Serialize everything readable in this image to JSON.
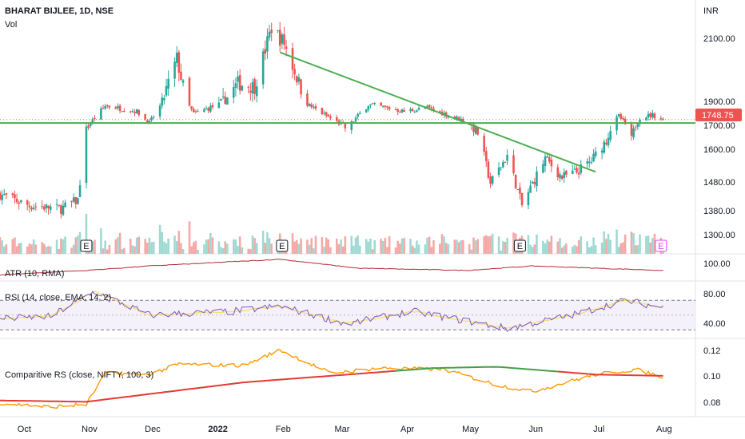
{
  "header": {
    "symbol": "BHARAT BIJLEE, 1D, NSE",
    "vol_label": "Vol",
    "currency": "INR"
  },
  "colors": {
    "up": "#26a69a",
    "down": "#ef5350",
    "trend": "#4caf50",
    "atr": "#b22833",
    "rsi": "#7e57c2",
    "rsi_ma": "#f5e06b",
    "crs": "#ff9800",
    "crs_ma_low": "#e53935",
    "crs_ma_high": "#43a047",
    "earnings": "#e040fb"
  },
  "price_axis_labels": [
    "2100.00",
    "1900.00",
    "1700.00",
    "1600.00",
    "1480.00",
    "1380.00",
    "1300.00"
  ],
  "last_price": "1748.75",
  "time_labels": [
    "Oct",
    "Nov",
    "Dec",
    "2022",
    "Feb",
    "Mar",
    "Apr",
    "May",
    "Jun",
    "Jul",
    "Aug"
  ],
  "earnings_marker": "E",
  "atr": {
    "label": "ATR (10, RMA)",
    "axis": [
      "100.00"
    ]
  },
  "rsi": {
    "label": "RSI (14, close, EMA, 14, 2)",
    "axis": [
      "80.00",
      "40.00"
    ]
  },
  "crs": {
    "label": "Comparitive RS (close, NIFTY, 100, 3)",
    "axis": [
      "0.12",
      "0.10",
      "0.08"
    ]
  },
  "chart_data": {
    "type": "candlestick",
    "title": "BHARAT BIJLEE, 1D, NSE",
    "price_range": [
      1250,
      2180
    ],
    "support_level": 1720,
    "trendline": [
      {
        "date": "2022-02-01",
        "price": 2060
      },
      {
        "date": "2022-07-01",
        "price": 1520
      }
    ],
    "price_path": [
      {
        "d": "2021-09-21",
        "p": 1440
      },
      {
        "d": "2021-10-05",
        "p": 1400
      },
      {
        "d": "2021-10-20",
        "p": 1390
      },
      {
        "d": "2021-10-28",
        "p": 1420
      },
      {
        "d": "2021-11-01",
        "p": 1680
      },
      {
        "d": "2021-11-10",
        "p": 1870
      },
      {
        "d": "2021-11-25",
        "p": 1820
      },
      {
        "d": "2021-12-01",
        "p": 1720
      },
      {
        "d": "2021-12-08",
        "p": 1920
      },
      {
        "d": "2021-12-14",
        "p": 2040
      },
      {
        "d": "2021-12-22",
        "p": 1800
      },
      {
        "d": "2022-01-03",
        "p": 1880
      },
      {
        "d": "2022-01-12",
        "p": 1960
      },
      {
        "d": "2022-01-20",
        "p": 1950
      },
      {
        "d": "2022-01-28",
        "p": 2140
      },
      {
        "d": "2022-02-03",
        "p": 2090
      },
      {
        "d": "2022-02-15",
        "p": 1870
      },
      {
        "d": "2022-02-25",
        "p": 1760
      },
      {
        "d": "2022-03-05",
        "p": 1680
      },
      {
        "d": "2022-03-15",
        "p": 1880
      },
      {
        "d": "2022-04-01",
        "p": 1820
      },
      {
        "d": "2022-04-12",
        "p": 1850
      },
      {
        "d": "2022-04-28",
        "p": 1750
      },
      {
        "d": "2022-05-06",
        "p": 1670
      },
      {
        "d": "2022-05-12",
        "p": 1480
      },
      {
        "d": "2022-05-20",
        "p": 1580
      },
      {
        "d": "2022-05-27",
        "p": 1400
      },
      {
        "d": "2022-06-07",
        "p": 1570
      },
      {
        "d": "2022-06-15",
        "p": 1500
      },
      {
        "d": "2022-06-22",
        "p": 1520
      },
      {
        "d": "2022-06-29",
        "p": 1560
      },
      {
        "d": "2022-07-06",
        "p": 1640
      },
      {
        "d": "2022-07-12",
        "p": 1780
      },
      {
        "d": "2022-07-18",
        "p": 1640
      },
      {
        "d": "2022-07-22",
        "p": 1770
      },
      {
        "d": "2022-07-28",
        "p": 1790
      },
      {
        "d": "2022-08-02",
        "p": 1748.75
      }
    ],
    "earnings_dates": [
      "2021-11-01",
      "2022-02-02",
      "2022-05-26",
      "2022-08-01"
    ],
    "atr_path": [
      {
        "d": "2021-09-21",
        "v": 80
      },
      {
        "d": "2021-11-01",
        "v": 90
      },
      {
        "d": "2021-12-01",
        "v": 100
      },
      {
        "d": "2022-02-01",
        "v": 115
      },
      {
        "d": "2022-03-10",
        "v": 95
      },
      {
        "d": "2022-05-01",
        "v": 90
      },
      {
        "d": "2022-06-01",
        "v": 100
      },
      {
        "d": "2022-07-01",
        "v": 95
      },
      {
        "d": "2022-08-02",
        "v": 90
      }
    ],
    "rsi_bands": [
      70,
      30
    ],
    "rsi_path": [
      {
        "d": "2021-09-21",
        "v": 45
      },
      {
        "d": "2021-10-15",
        "v": 48
      },
      {
        "d": "2021-11-05",
        "v": 82
      },
      {
        "d": "2021-12-01",
        "v": 50
      },
      {
        "d": "2022-01-10",
        "v": 55
      },
      {
        "d": "2022-02-01",
        "v": 62
      },
      {
        "d": "2022-03-05",
        "v": 38
      },
      {
        "d": "2022-04-05",
        "v": 55
      },
      {
        "d": "2022-05-20",
        "v": 32
      },
      {
        "d": "2022-06-20",
        "v": 50
      },
      {
        "d": "2022-07-15",
        "v": 70
      },
      {
        "d": "2022-08-02",
        "v": 60
      }
    ],
    "crs_path": [
      {
        "d": "2021-09-21",
        "v": 0.08
      },
      {
        "d": "2021-10-15",
        "v": 0.077
      },
      {
        "d": "2021-11-01",
        "v": 0.079
      },
      {
        "d": "2021-11-10",
        "v": 0.103
      },
      {
        "d": "2021-12-01",
        "v": 0.102
      },
      {
        "d": "2021-12-15",
        "v": 0.11
      },
      {
        "d": "2022-01-15",
        "v": 0.109
      },
      {
        "d": "2022-02-01",
        "v": 0.121
      },
      {
        "d": "2022-02-25",
        "v": 0.103
      },
      {
        "d": "2022-03-20",
        "v": 0.107
      },
      {
        "d": "2022-04-20",
        "v": 0.106
      },
      {
        "d": "2022-05-15",
        "v": 0.094
      },
      {
        "d": "2022-06-01",
        "v": 0.089
      },
      {
        "d": "2022-07-01",
        "v": 0.102
      },
      {
        "d": "2022-07-20",
        "v": 0.106
      },
      {
        "d": "2022-08-02",
        "v": 0.1
      }
    ],
    "crs_ma_path": [
      {
        "d": "2021-09-21",
        "v": 0.082
      },
      {
        "d": "2021-11-01",
        "v": 0.081
      },
      {
        "d": "2022-01-15",
        "v": 0.096
      },
      {
        "d": "2022-04-15",
        "v": 0.107
      },
      {
        "d": "2022-05-15",
        "v": 0.108
      },
      {
        "d": "2022-07-01",
        "v": 0.102
      },
      {
        "d": "2022-08-02",
        "v": 0.101
      }
    ]
  }
}
